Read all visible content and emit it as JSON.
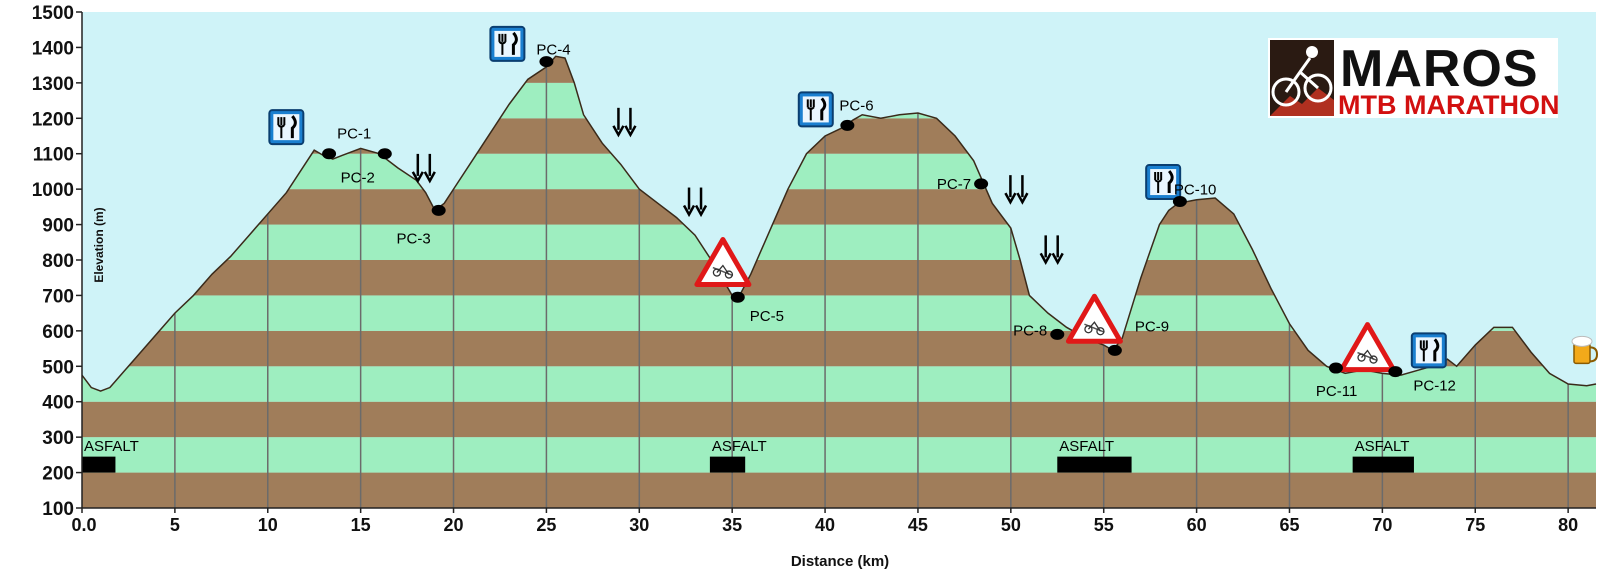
{
  "chart_data": {
    "type": "area",
    "xlabel": "Distance (km)",
    "ylabel": "Elevation (m)",
    "xlim": [
      0,
      81.5
    ],
    "ylim": [
      100,
      1500
    ],
    "x_ticks": [
      0,
      5,
      10,
      15,
      20,
      25,
      30,
      35,
      40,
      45,
      50,
      55,
      60,
      65,
      70,
      75,
      80
    ],
    "x_tick_labels": [
      "0.0",
      "5",
      "10",
      "15",
      "20",
      "25",
      "30",
      "35",
      "40",
      "45",
      "50",
      "55",
      "60",
      "65",
      "70",
      "75",
      "80"
    ],
    "y_ticks": [
      100,
      200,
      300,
      400,
      500,
      600,
      700,
      800,
      900,
      1000,
      1100,
      1200,
      1300,
      1400,
      1500
    ],
    "y_tick_labels": [
      "100",
      "200",
      "300",
      "400",
      "500",
      "600",
      "700",
      "800",
      "900",
      "1000",
      "1100",
      "1200",
      "1300",
      "1400",
      "1500"
    ],
    "band_colors": [
      "#a07d5a",
      "#9eeec0"
    ],
    "sky_color": "#cff3f8",
    "profile": {
      "x": [
        0,
        0.5,
        1,
        1.5,
        2,
        3,
        4,
        5,
        6,
        7,
        8,
        9,
        10,
        11,
        12,
        12.5,
        13,
        13.5,
        14,
        15,
        16,
        17,
        18,
        18.5,
        19,
        19.5,
        20,
        21,
        22,
        23,
        24,
        25,
        25.5,
        26,
        26.5,
        27,
        28,
        29,
        30,
        31,
        32,
        33,
        34,
        35,
        35.3,
        36,
        37,
        38,
        39,
        40,
        41,
        41.5,
        42,
        43,
        44,
        45,
        46,
        47,
        48,
        48.5,
        49,
        50,
        50.5,
        51,
        52,
        53,
        54,
        55,
        55.5,
        56,
        57,
        58,
        58.5,
        59,
        60,
        61,
        62,
        63,
        64,
        65,
        66,
        67,
        68,
        69,
        70,
        71,
        72,
        73,
        73.5,
        74,
        75,
        76,
        77,
        78,
        79,
        80,
        81,
        81.5
      ],
      "y": [
        475,
        440,
        430,
        440,
        470,
        530,
        590,
        650,
        700,
        760,
        810,
        870,
        930,
        990,
        1070,
        1110,
        1095,
        1085,
        1095,
        1115,
        1100,
        1060,
        1025,
        990,
        940,
        960,
        1000,
        1080,
        1160,
        1240,
        1310,
        1345,
        1375,
        1370,
        1300,
        1210,
        1130,
        1070,
        1000,
        960,
        920,
        870,
        790,
        700,
        690,
        760,
        880,
        1000,
        1100,
        1150,
        1175,
        1195,
        1210,
        1200,
        1210,
        1215,
        1200,
        1150,
        1080,
        1020,
        960,
        890,
        800,
        700,
        650,
        610,
        580,
        560,
        545,
        580,
        750,
        900,
        940,
        960,
        970,
        975,
        930,
        830,
        720,
        620,
        545,
        500,
        480,
        490,
        480,
        475,
        490,
        505,
        520,
        500,
        560,
        610,
        610,
        540,
        480,
        450,
        445,
        450
      ]
    },
    "checkpoints": [
      {
        "label": "PC-1",
        "x": 13.3,
        "y": 1100
      },
      {
        "label": "PC-2",
        "x": 16.3,
        "y": 1100
      },
      {
        "label": "PC-3",
        "x": 19.2,
        "y": 940
      },
      {
        "label": "PC-4",
        "x": 25.0,
        "y": 1360
      },
      {
        "label": "PC-5",
        "x": 35.3,
        "y": 695
      },
      {
        "label": "PC-6",
        "x": 41.2,
        "y": 1180
      },
      {
        "label": "PC-7",
        "x": 48.4,
        "y": 1015
      },
      {
        "label": "PC-8",
        "x": 52.5,
        "y": 590
      },
      {
        "label": "PC-9",
        "x": 55.6,
        "y": 545
      },
      {
        "label": "PC-10",
        "x": 59.1,
        "y": 965
      },
      {
        "label": "PC-11",
        "x": 67.5,
        "y": 495
      },
      {
        "label": "PC-12",
        "x": 70.7,
        "y": 485
      }
    ],
    "asphalt_sections": [
      {
        "label": "ASFALT",
        "x_start": 0.0,
        "x_end": 1.8
      },
      {
        "label": "ASFALT",
        "x_start": 33.8,
        "x_end": 35.7
      },
      {
        "label": "ASFALT",
        "x_start": 52.5,
        "x_end": 56.5
      },
      {
        "label": "ASFALT",
        "x_start": 68.4,
        "x_end": 71.7
      }
    ],
    "feed_stations": [
      {
        "icon": "fork-knife-icon",
        "x": 11.0,
        "y": 1175
      },
      {
        "icon": "fork-knife-icon",
        "x": 22.9,
        "y": 1410
      },
      {
        "icon": "fork-knife-icon",
        "x": 39.5,
        "y": 1225
      },
      {
        "icon": "fork-knife-icon",
        "x": 58.2,
        "y": 1020
      },
      {
        "icon": "fork-knife-icon",
        "x": 72.5,
        "y": 545
      }
    ],
    "descent_markers": [
      {
        "icon": "double-down-arrow-icon",
        "x": 18.4,
        "y": 1060
      },
      {
        "icon": "double-down-arrow-icon",
        "x": 29.2,
        "y": 1190
      },
      {
        "icon": "double-down-arrow-icon",
        "x": 33.0,
        "y": 965
      },
      {
        "icon": "double-down-arrow-icon",
        "x": 50.3,
        "y": 1000
      },
      {
        "icon": "double-down-arrow-icon",
        "x": 52.2,
        "y": 830
      }
    ],
    "warning_signs": [
      {
        "icon": "steep-descent-warning-icon",
        "x": 34.5,
        "y": 790
      },
      {
        "icon": "steep-descent-warning-icon",
        "x": 54.5,
        "y": 630
      },
      {
        "icon": "steep-descent-warning-icon",
        "x": 69.2,
        "y": 550
      }
    ],
    "finish": {
      "icon": "beer-mug-icon",
      "x": 80.8,
      "y": 545
    }
  },
  "logo": {
    "line1": "MAROS",
    "line2": "MTB MARATHON"
  }
}
